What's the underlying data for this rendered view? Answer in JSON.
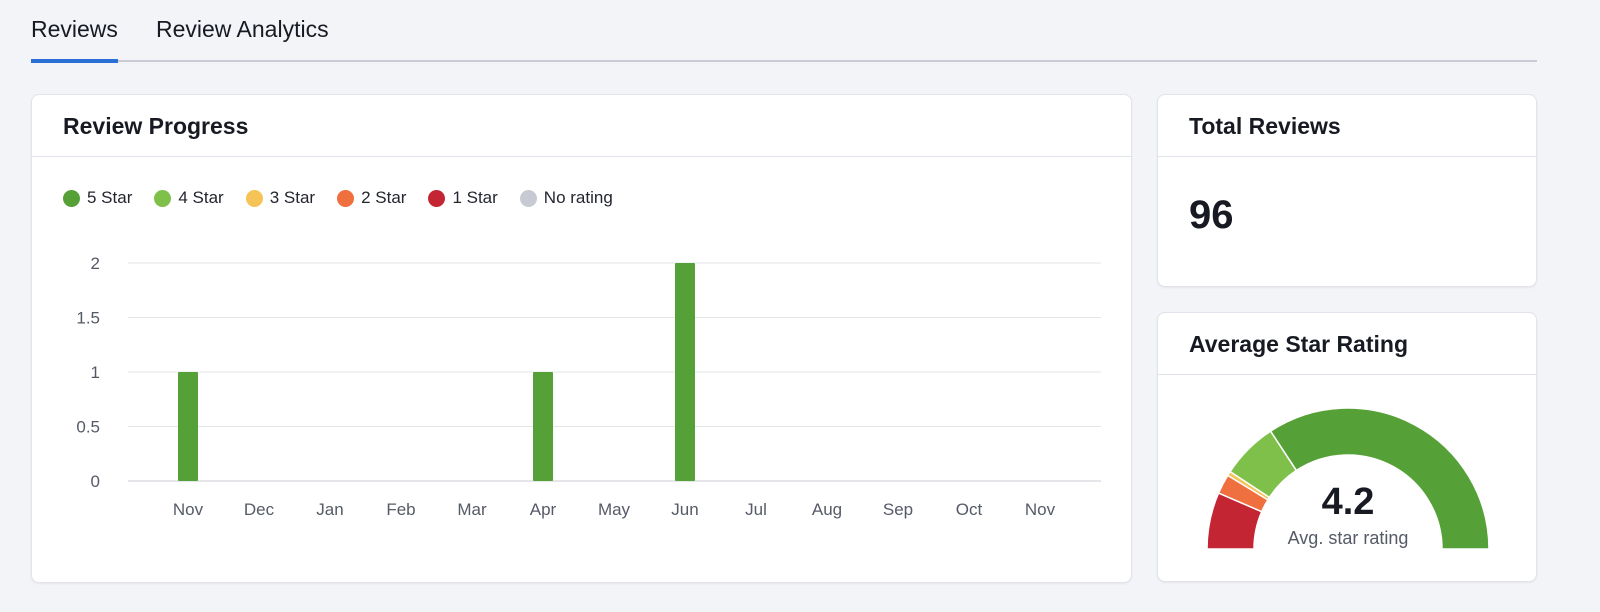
{
  "tabs": [
    {
      "label": "Reviews",
      "active": true
    },
    {
      "label": "Review Analytics",
      "active": false
    }
  ],
  "progress": {
    "title": "Review Progress"
  },
  "chart_data": {
    "type": "bar",
    "title": "Review Progress",
    "legend": [
      {
        "name": "5 Star",
        "color": "#56a137"
      },
      {
        "name": "4 Star",
        "color": "#7fc04b"
      },
      {
        "name": "3 Star",
        "color": "#f5c356"
      },
      {
        "name": "2 Star",
        "color": "#ef6f3f"
      },
      {
        "name": "1 Star",
        "color": "#c42533"
      },
      {
        "name": "No rating",
        "color": "#c7cad2"
      }
    ],
    "legend_placement": "top-left",
    "categories": [
      "Nov",
      "Dec",
      "Jan",
      "Feb",
      "Mar",
      "Apr",
      "May",
      "Jun",
      "Jul",
      "Aug",
      "Sep",
      "Oct",
      "Nov"
    ],
    "series": [
      {
        "name": "5 Star",
        "values": [
          1,
          0,
          0,
          0,
          0,
          1,
          0,
          2,
          0,
          0,
          0,
          0,
          0
        ]
      }
    ],
    "yticks": [
      "0",
      "0.5",
      "1",
      "1.5",
      "2"
    ],
    "ylim": [
      0,
      2
    ],
    "grid": true
  },
  "total": {
    "title": "Total Reviews",
    "value": "96"
  },
  "average": {
    "title": "Average Star Rating",
    "value": "4.2",
    "caption": "Avg. star rating",
    "gauge_share_percent": [
      {
        "name": "1 Star",
        "value": 13,
        "color": "#c42533"
      },
      {
        "name": "2 Star",
        "value": 4.5,
        "color": "#ef6f3f"
      },
      {
        "name": "3 Star",
        "value": 1,
        "color": "#f5c356"
      },
      {
        "name": "4 Star",
        "value": 13,
        "color": "#7fc04b"
      },
      {
        "name": "5 Star",
        "value": 68.5,
        "color": "#56a137"
      }
    ]
  }
}
